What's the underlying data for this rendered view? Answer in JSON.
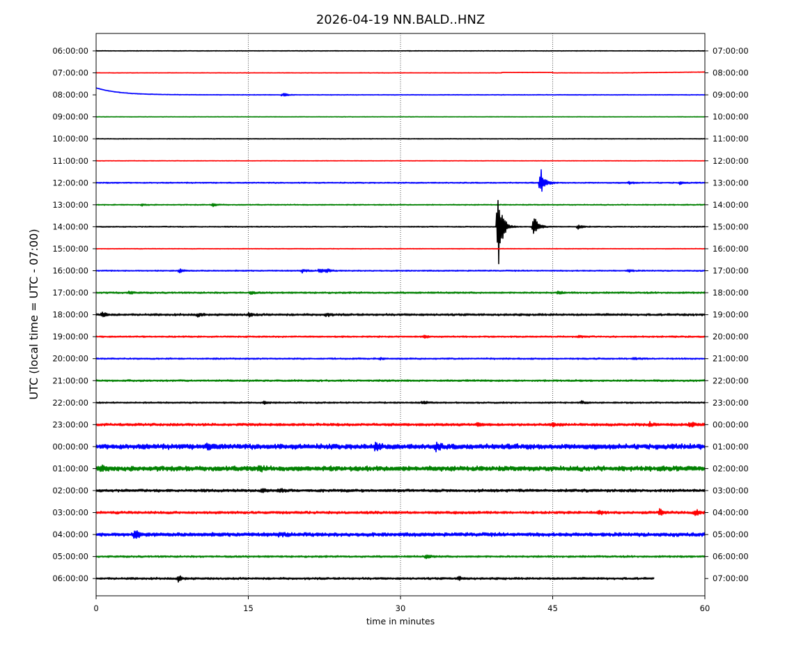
{
  "chart_data": {
    "type": "line",
    "title": "2026-04-19 NN.BALD..HNZ",
    "xlabel": "time in minutes",
    "ylabel": "UTC (local time = UTC - 07:00)",
    "xlim": [
      0,
      60
    ],
    "x_ticks": [
      0,
      15,
      30,
      45,
      60
    ],
    "x_tick_labels": [
      "0",
      "15",
      "30",
      "45",
      "60"
    ],
    "grid": "vertical dotted lines at 15, 30, 45",
    "color_cycle": [
      "#000000",
      "#ff0000",
      "#0000ff",
      "#008000"
    ],
    "rows": [
      {
        "left": "06:00:00",
        "right": "07:00:00",
        "color": "#000000",
        "noise": 0.4,
        "bursts": [],
        "end": 60
      },
      {
        "left": "07:00:00",
        "right": "08:00:00",
        "color": "#ff0000",
        "noise": 0.3,
        "bursts": [],
        "end": 60,
        "drift": "rise-end"
      },
      {
        "left": "08:00:00",
        "right": "09:00:00",
        "color": "#0000ff",
        "noise": 0.4,
        "bursts": [
          {
            "t": 18.4,
            "amp": 3
          }
        ],
        "end": 60,
        "drift": "decay-start"
      },
      {
        "left": "09:00:00",
        "right": "10:00:00",
        "color": "#008000",
        "noise": 0.3,
        "bursts": [],
        "end": 60
      },
      {
        "left": "10:00:00",
        "right": "11:00:00",
        "color": "#000000",
        "noise": 0.4,
        "bursts": [],
        "end": 60
      },
      {
        "left": "11:00:00",
        "right": "12:00:00",
        "color": "#ff0000",
        "noise": 0.3,
        "bursts": [],
        "end": 60
      },
      {
        "left": "12:00:00",
        "right": "13:00:00",
        "color": "#0000ff",
        "noise": 0.7,
        "bursts": [
          {
            "t": 43.8,
            "amp": 22
          },
          {
            "t": 52.5,
            "amp": 2
          },
          {
            "t": 57.5,
            "amp": 2
          }
        ],
        "end": 60
      },
      {
        "left": "13:00:00",
        "right": "14:00:00",
        "color": "#008000",
        "noise": 0.6,
        "bursts": [
          {
            "t": 11.5,
            "amp": 3
          },
          {
            "t": 4.5,
            "amp": 1.5
          }
        ],
        "end": 60
      },
      {
        "left": "14:00:00",
        "right": "15:00:00",
        "color": "#000000",
        "noise": 0.6,
        "bursts": [
          {
            "t": 39.6,
            "amp": 68
          },
          {
            "t": 43.1,
            "amp": 20
          },
          {
            "t": 47.5,
            "amp": 4
          }
        ],
        "end": 60
      },
      {
        "left": "15:00:00",
        "right": "16:00:00",
        "color": "#ff0000",
        "noise": 0.4,
        "bursts": [],
        "end": 60
      },
      {
        "left": "16:00:00",
        "right": "17:00:00",
        "color": "#0000ff",
        "noise": 0.7,
        "bursts": [
          {
            "t": 8.2,
            "amp": 3
          },
          {
            "t": 20.3,
            "amp": 3
          },
          {
            "t": 22.0,
            "amp": 4
          },
          {
            "t": 22.6,
            "amp": 3
          },
          {
            "t": 52.5,
            "amp": 2
          }
        ],
        "end": 60
      },
      {
        "left": "17:00:00",
        "right": "18:00:00",
        "color": "#008000",
        "noise": 1.0,
        "bursts": [
          {
            "t": 3.2,
            "amp": 2
          },
          {
            "t": 15.2,
            "amp": 2
          },
          {
            "t": 45.5,
            "amp": 2
          }
        ],
        "end": 60
      },
      {
        "left": "18:00:00",
        "right": "19:00:00",
        "color": "#000000",
        "noise": 1.3,
        "bursts": [
          {
            "t": 0.6,
            "amp": 3
          },
          {
            "t": 10,
            "amp": 2.5
          },
          {
            "t": 15,
            "amp": 3
          },
          {
            "t": 22.6,
            "amp": 3
          }
        ],
        "end": 60
      },
      {
        "left": "19:00:00",
        "right": "20:00:00",
        "color": "#ff0000",
        "noise": 0.9,
        "bursts": [
          {
            "t": 32.3,
            "amp": 3
          },
          {
            "t": 47.5,
            "amp": 2
          }
        ],
        "end": 60
      },
      {
        "left": "20:00:00",
        "right": "21:00:00",
        "color": "#0000ff",
        "noise": 0.9,
        "bursts": [
          {
            "t": 28,
            "amp": 1.5
          },
          {
            "t": 53,
            "amp": 1.5
          }
        ],
        "end": 60
      },
      {
        "left": "21:00:00",
        "right": "22:00:00",
        "color": "#008000",
        "noise": 1.1,
        "bursts": [],
        "end": 60
      },
      {
        "left": "22:00:00",
        "right": "23:00:00",
        "color": "#000000",
        "noise": 0.9,
        "bursts": [
          {
            "t": 16.5,
            "amp": 2
          },
          {
            "t": 32.2,
            "amp": 2.5
          },
          {
            "t": 47.8,
            "amp": 2.5
          }
        ],
        "end": 60
      },
      {
        "left": "23:00:00",
        "right": "00:00:00",
        "color": "#ff0000",
        "noise": 1.6,
        "bursts": [
          {
            "t": 37.5,
            "amp": 3
          },
          {
            "t": 45,
            "amp": 3
          },
          {
            "t": 54.5,
            "amp": 4
          },
          {
            "t": 58.5,
            "amp": 4
          }
        ],
        "end": 60
      },
      {
        "left": "00:00:00",
        "right": "01:00:00",
        "color": "#0000ff",
        "noise": 3.2,
        "bursts": [
          {
            "t": 11,
            "amp": 5
          },
          {
            "t": 27.5,
            "amp": 6
          },
          {
            "t": 33.5,
            "amp": 5
          }
        ],
        "end": 60
      },
      {
        "left": "01:00:00",
        "right": "02:00:00",
        "color": "#008000",
        "noise": 3.0,
        "bursts": [
          {
            "t": 0.5,
            "amp": 4
          },
          {
            "t": 16,
            "amp": 4
          }
        ],
        "end": 60
      },
      {
        "left": "02:00:00",
        "right": "03:00:00",
        "color": "#000000",
        "noise": 1.7,
        "bursts": [
          {
            "t": 16.3,
            "amp": 3.5
          },
          {
            "t": 18,
            "amp": 3
          }
        ],
        "end": 60
      },
      {
        "left": "03:00:00",
        "right": "04:00:00",
        "color": "#ff0000",
        "noise": 1.6,
        "bursts": [
          {
            "t": 49.5,
            "amp": 4
          },
          {
            "t": 55.5,
            "amp": 5
          },
          {
            "t": 59,
            "amp": 5
          }
        ],
        "end": 60
      },
      {
        "left": "04:00:00",
        "right": "05:00:00",
        "color": "#0000ff",
        "noise": 2.3,
        "bursts": [
          {
            "t": 3.8,
            "amp": 7
          },
          {
            "t": 18,
            "amp": 3
          }
        ],
        "end": 60
      },
      {
        "left": "05:00:00",
        "right": "06:00:00",
        "color": "#008000",
        "noise": 1.1,
        "bursts": [
          {
            "t": 32.5,
            "amp": 3
          }
        ],
        "end": 60
      },
      {
        "left": "06:00:00",
        "right": "07:00:00",
        "color": "#000000",
        "noise": 1.3,
        "bursts": [
          {
            "t": 8.1,
            "amp": 4
          },
          {
            "t": 35.7,
            "amp": 3
          }
        ],
        "end": 55
      }
    ]
  }
}
